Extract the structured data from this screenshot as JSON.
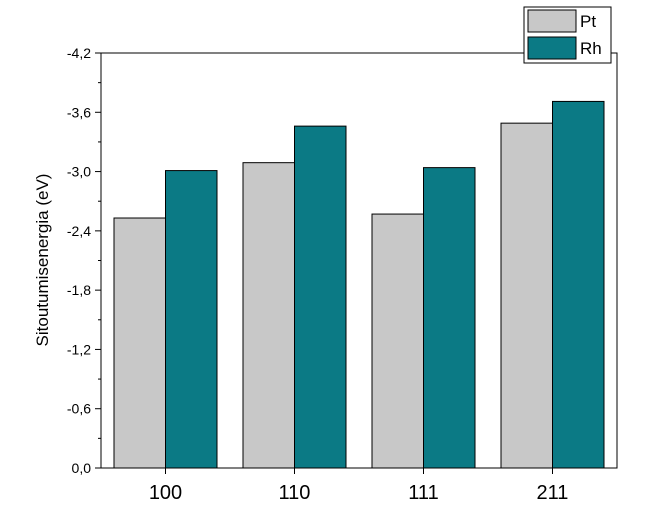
{
  "chart_data": {
    "type": "bar",
    "categories": [
      "100",
      "110",
      "111",
      "211"
    ],
    "series": [
      {
        "name": "Pt",
        "color": "#c8c8c8",
        "values": [
          -2.53,
          -3.09,
          -2.57,
          -3.49
        ]
      },
      {
        "name": "Rh",
        "color": "#0b7a85",
        "values": [
          -3.01,
          -3.46,
          -3.04,
          -3.71
        ]
      }
    ],
    "title": "",
    "xlabel": "",
    "ylabel": "Sitoutumisenergia (eV)",
    "ylim": [
      0.0,
      -4.2
    ],
    "y_ticks": [
      "0,0",
      "-0,6",
      "-1,2",
      "-1,8",
      "-2,4",
      "-3,0",
      "-3,6",
      "-4,2"
    ],
    "grid": false,
    "legend_position": "top-right"
  }
}
